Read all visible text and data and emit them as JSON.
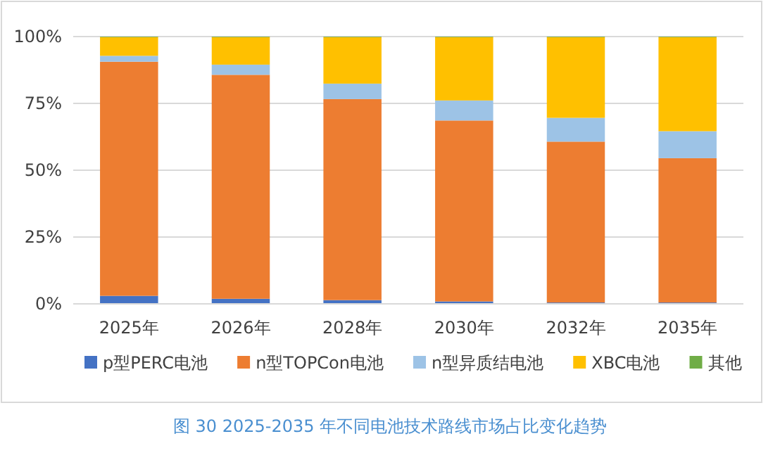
{
  "chart_data": {
    "type": "bar",
    "stacked": true,
    "categories": [
      "2025年",
      "2026年",
      "2028年",
      "2030年",
      "2032年",
      "2035年"
    ],
    "series": [
      {
        "name": "p型PERC电池",
        "color": "#4472c4",
        "values": [
          3.0,
          1.9,
          1.4,
          0.9,
          0.5,
          0.5
        ]
      },
      {
        "name": "n型TOPCon电池",
        "color": "#ed7d31",
        "values": [
          87.6,
          83.8,
          75.2,
          67.7,
          60.2,
          54.0
        ]
      },
      {
        "name": "n型异质结电池",
        "color": "#9dc3e6",
        "values": [
          2.2,
          3.8,
          5.8,
          7.5,
          8.9,
          10.1
        ]
      },
      {
        "name": "XBC电池",
        "color": "#ffc000",
        "values": [
          7.0,
          10.3,
          17.4,
          23.7,
          30.2,
          35.2
        ]
      },
      {
        "name": "其他",
        "color": "#70ad47",
        "values": [
          0.2,
          0.2,
          0.2,
          0.2,
          0.2,
          0.2
        ]
      }
    ],
    "ylim": [
      0,
      100
    ],
    "yticks": [
      {
        "value": 0,
        "label": "0%"
      },
      {
        "value": 25,
        "label": "25%"
      },
      {
        "value": 50,
        "label": "50%"
      },
      {
        "value": 75,
        "label": "75%"
      },
      {
        "value": 100,
        "label": "100%"
      }
    ],
    "grid": "y",
    "legend": "bottom",
    "annotations": [
      "图 30    2025-2035 年不同电池技术路线市场占比变化趋势"
    ]
  }
}
